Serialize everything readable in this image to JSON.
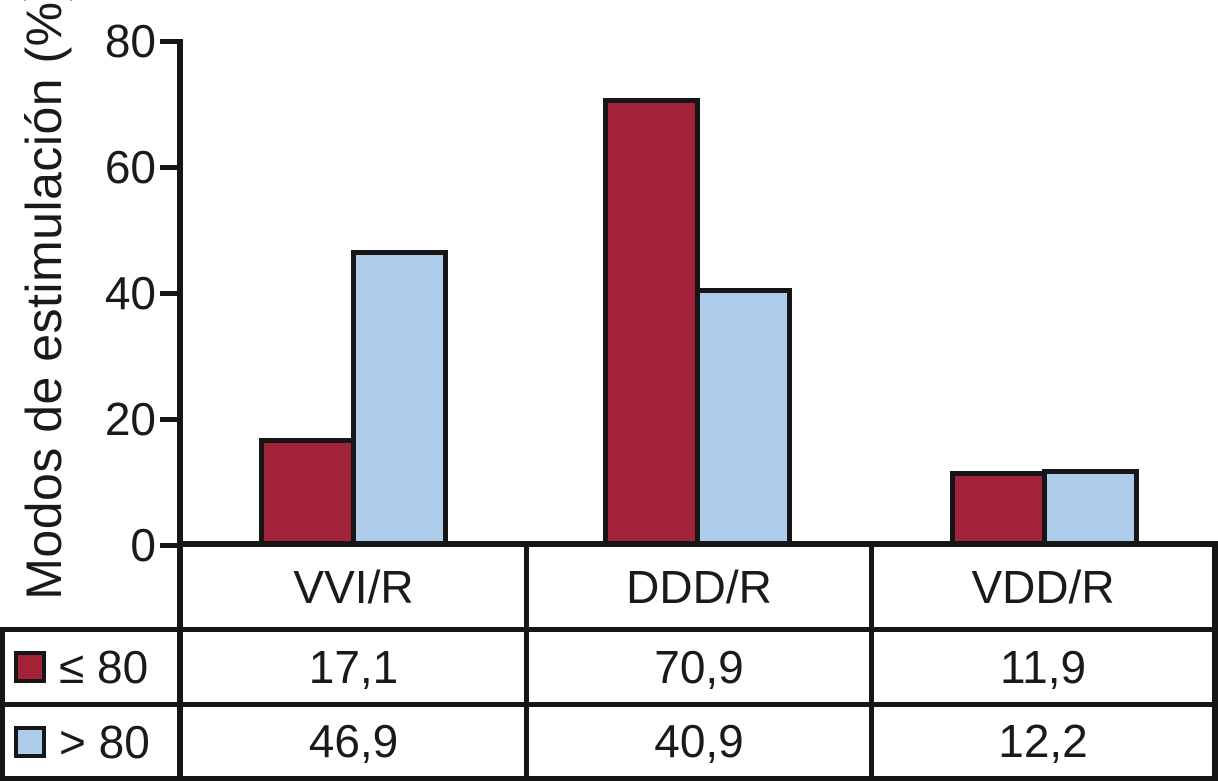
{
  "chart_data": {
    "type": "bar",
    "title": "",
    "ylabel": "Modos de estimulación (%)",
    "ylim": [
      0,
      80
    ],
    "yticks": [
      0,
      20,
      40,
      60,
      80
    ],
    "grid": false,
    "legend_position": "bottom-table-left",
    "categories": [
      "VVI/R",
      "DDD/R",
      "VDD/R"
    ],
    "series": [
      {
        "name": "≤ 80",
        "color": "#A22339",
        "values": [
          17.1,
          70.9,
          11.9
        ],
        "display_values": [
          "17,1",
          "70,9",
          "11,9"
        ]
      },
      {
        "name": "> 80",
        "color": "#AECDEA",
        "values": [
          46.9,
          40.9,
          12.2
        ],
        "display_values": [
          "46,9",
          "40,9",
          "12,2"
        ]
      }
    ]
  }
}
